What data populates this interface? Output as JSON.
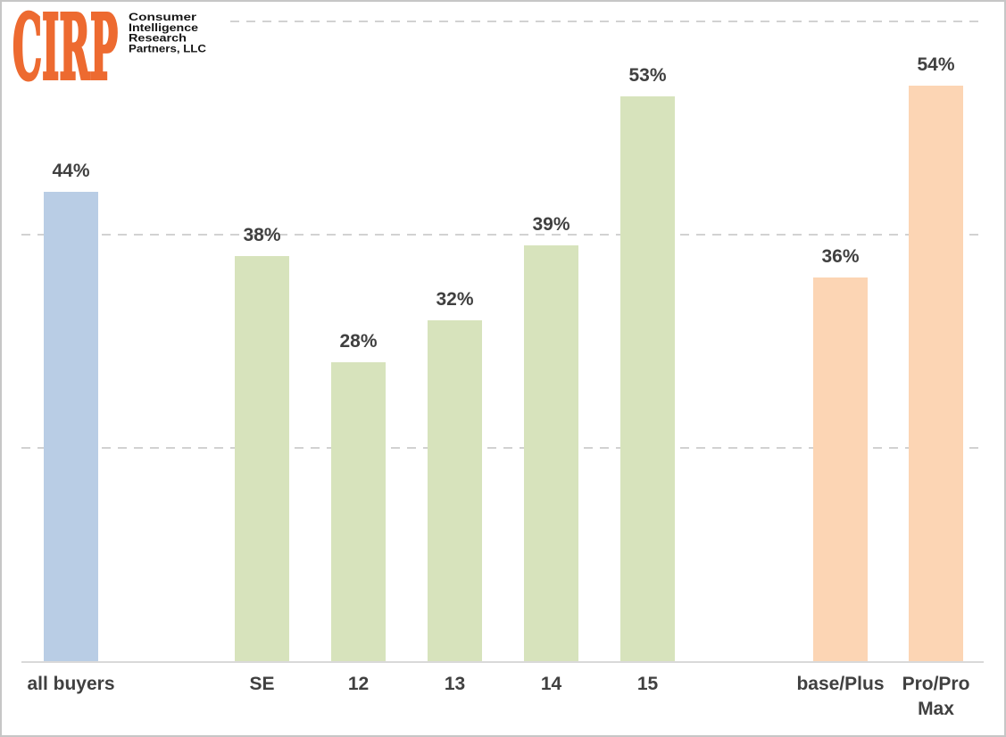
{
  "logo": {
    "brand": "CIRP",
    "company_lines": [
      "Consumer",
      "Intelligence",
      "Research",
      "Partners, LLC"
    ],
    "brand_color": "#ed6a30",
    "company_text_color": "#151515"
  },
  "chart_data": {
    "type": "bar",
    "title": "",
    "xlabel": "",
    "ylabel": "",
    "unit": "percent",
    "categories": [
      "all buyers",
      "SE",
      "12",
      "13",
      "14",
      "15",
      "base/Plus",
      "Pro/Pro Max"
    ],
    "values": [
      44,
      38,
      28,
      32,
      39,
      53,
      36,
      54
    ],
    "value_labels": [
      "44%",
      "38%",
      "28%",
      "32%",
      "39%",
      "53%",
      "36%",
      "54%"
    ],
    "groups": [
      "all_buyers",
      "iphone_model",
      "iphone_model",
      "iphone_model",
      "iphone_model",
      "iphone_model",
      "price_tier",
      "price_tier"
    ],
    "group_colors": {
      "all_buyers": "#b9cde5",
      "iphone_model": "#d7e3bc",
      "price_tier": "#fcd5b4"
    },
    "ylim": [
      0,
      62
    ],
    "gridlines_pct": [
      20,
      40,
      60
    ],
    "grid_style": "dashed",
    "legend": "none",
    "axes_labeled": false
  },
  "colors": {
    "label_text": "#404040",
    "gridline": "#d2d2d2",
    "axis_line": "#d9d9d9",
    "border": "#c6c6c6",
    "background": "#ffffff"
  }
}
